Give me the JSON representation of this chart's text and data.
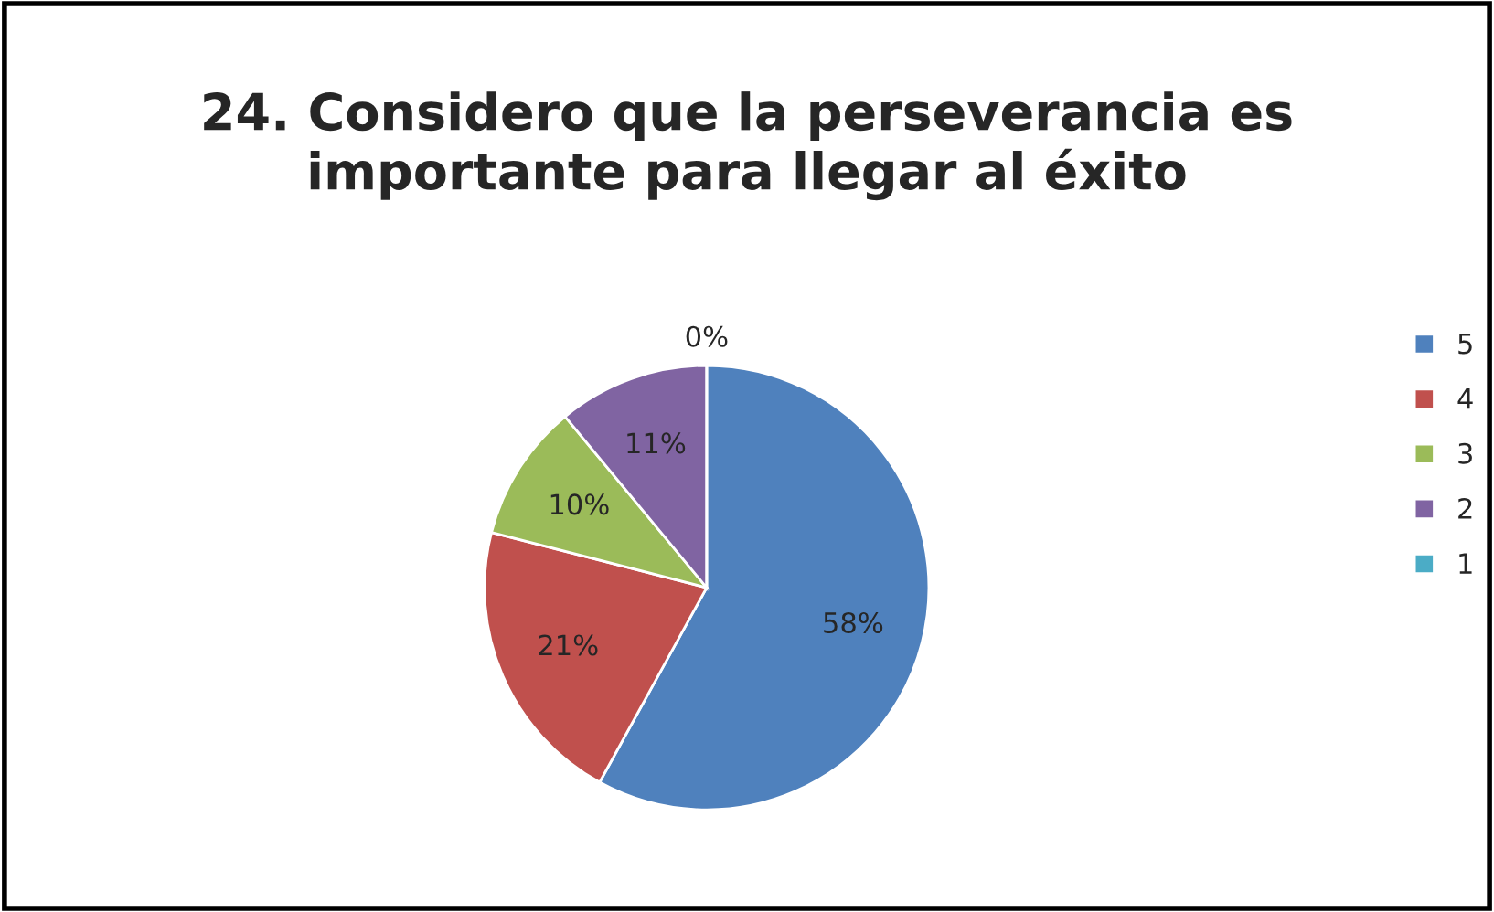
{
  "chart_data": {
    "type": "pie",
    "title": "24. Considero que la perseverancia es importante para llegar al éxito",
    "categories": [
      "5",
      "4",
      "3",
      "2",
      "1"
    ],
    "values": [
      58,
      21,
      10,
      11,
      0
    ],
    "colors": [
      "#4f81bd",
      "#c0504d",
      "#9bbb59",
      "#8064a2",
      "#4bacc6"
    ],
    "value_labels": [
      "58%",
      "21%",
      "10%",
      "11%",
      "0%"
    ],
    "legend": "right"
  }
}
